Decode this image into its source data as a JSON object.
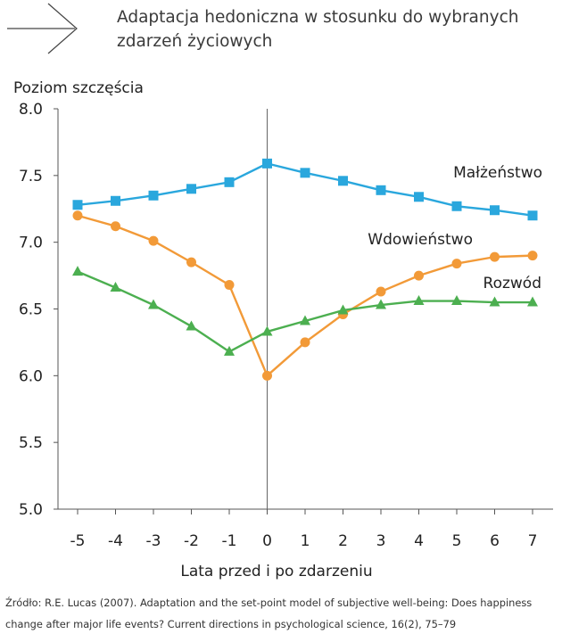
{
  "header": {
    "title": "Adaptacja hedoniczna w stosunku do wybranych zdarzeń życiowych"
  },
  "chart_data": {
    "type": "line",
    "ylabel": "Poziom szczęścia",
    "xlabel": "Lata przed i po zdarzeniu",
    "x": [
      -5,
      -4,
      -3,
      -2,
      -1,
      0,
      1,
      2,
      3,
      4,
      5,
      6,
      7
    ],
    "ylim": [
      5.0,
      8.0
    ],
    "yticks": [
      "5.0",
      "5.5",
      "6.0",
      "6.5",
      "7.0",
      "7.5",
      "8.0"
    ],
    "xticks": [
      "-5",
      "-4",
      "-3",
      "-2",
      "-1",
      "0",
      "1",
      "2",
      "3",
      "4",
      "5",
      "6",
      "7"
    ],
    "event_line_at": 0,
    "grid": false,
    "series": [
      {
        "name": "Małżeństwo",
        "color": "#2aa7dd",
        "marker": "square",
        "values": [
          7.28,
          7.31,
          7.35,
          7.4,
          7.45,
          7.59,
          7.52,
          7.46,
          7.39,
          7.34,
          7.27,
          7.24,
          7.2
        ]
      },
      {
        "name": "Wdowieństwo",
        "color": "#f29a38",
        "marker": "circle",
        "values": [
          7.2,
          7.12,
          7.01,
          6.85,
          6.68,
          6.0,
          6.25,
          6.46,
          6.63,
          6.75,
          6.84,
          6.89,
          6.9
        ]
      },
      {
        "name": "Rozwód",
        "color": "#4caf50",
        "marker": "triangle",
        "values": [
          6.78,
          6.66,
          6.53,
          6.37,
          6.18,
          6.33,
          6.41,
          6.49,
          6.53,
          6.56,
          6.56,
          6.55,
          6.55
        ]
      }
    ]
  },
  "footer": {
    "source": "Źródło: R.E. Lucas (2007). Adaptation and the set-point model of subjective well-being: Does happiness change after major life events? Current directions in psychological science, 16(2), 75–79"
  }
}
